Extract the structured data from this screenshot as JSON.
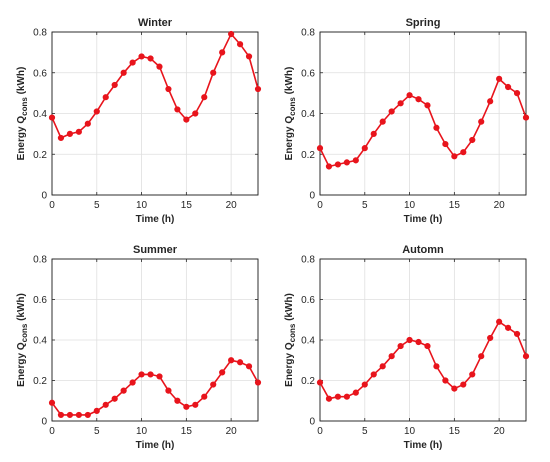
{
  "figure": {
    "series_color": "#e8141c",
    "x_ticks": [
      0,
      5,
      10,
      15,
      20
    ],
    "y_ticks": [
      0,
      0.2,
      0.4,
      0.6,
      0.8
    ]
  },
  "chart_data": [
    {
      "type": "line",
      "title": "Winter",
      "xlabel": "Time (h)",
      "ylabel_main": "Energy  Q",
      "ylabel_sub": "cons",
      "ylabel_unit": "(kWh)",
      "xlim": [
        0,
        23
      ],
      "ylim": [
        0,
        0.8
      ],
      "grid": true,
      "x": [
        0,
        1,
        2,
        3,
        4,
        5,
        6,
        7,
        8,
        9,
        10,
        11,
        12,
        13,
        14,
        15,
        16,
        17,
        18,
        19,
        20,
        21,
        22,
        23
      ],
      "values": [
        0.38,
        0.28,
        0.3,
        0.31,
        0.35,
        0.41,
        0.48,
        0.54,
        0.6,
        0.65,
        0.68,
        0.67,
        0.63,
        0.52,
        0.42,
        0.37,
        0.4,
        0.48,
        0.6,
        0.7,
        0.79,
        0.74,
        0.68,
        0.52
      ]
    },
    {
      "type": "line",
      "title": "Spring",
      "xlabel": "Time (h)",
      "ylabel_main": "Energy  Q",
      "ylabel_sub": "cons",
      "ylabel_unit": "(kWh)",
      "xlim": [
        0,
        23
      ],
      "ylim": [
        0,
        0.8
      ],
      "grid": true,
      "x": [
        0,
        1,
        2,
        3,
        4,
        5,
        6,
        7,
        8,
        9,
        10,
        11,
        12,
        13,
        14,
        15,
        16,
        17,
        18,
        19,
        20,
        21,
        22,
        23
      ],
      "values": [
        0.23,
        0.14,
        0.15,
        0.16,
        0.17,
        0.23,
        0.3,
        0.36,
        0.41,
        0.45,
        0.49,
        0.47,
        0.44,
        0.33,
        0.25,
        0.19,
        0.21,
        0.27,
        0.36,
        0.46,
        0.57,
        0.53,
        0.5,
        0.38
      ]
    },
    {
      "type": "line",
      "title": "Summer",
      "xlabel": "Time (h)",
      "ylabel_main": "Energy  Q",
      "ylabel_sub": "cons",
      "ylabel_unit": "(kWh)",
      "xlim": [
        0,
        23
      ],
      "ylim": [
        0,
        0.8
      ],
      "grid": true,
      "x": [
        0,
        1,
        2,
        3,
        4,
        5,
        6,
        7,
        8,
        9,
        10,
        11,
        12,
        13,
        14,
        15,
        16,
        17,
        18,
        19,
        20,
        21,
        22,
        23
      ],
      "values": [
        0.09,
        0.03,
        0.03,
        0.03,
        0.03,
        0.05,
        0.08,
        0.11,
        0.15,
        0.19,
        0.23,
        0.23,
        0.22,
        0.15,
        0.1,
        0.07,
        0.08,
        0.12,
        0.18,
        0.24,
        0.3,
        0.29,
        0.27,
        0.19
      ]
    },
    {
      "type": "line",
      "title": "Automn",
      "xlabel": "Time (h)",
      "ylabel_main": "Energy  Q",
      "ylabel_sub": "cons",
      "ylabel_unit": "(kWh)",
      "xlim": [
        0,
        23
      ],
      "ylim": [
        0,
        0.8
      ],
      "grid": true,
      "x": [
        0,
        1,
        2,
        3,
        4,
        5,
        6,
        7,
        8,
        9,
        10,
        11,
        12,
        13,
        14,
        15,
        16,
        17,
        18,
        19,
        20,
        21,
        22,
        23
      ],
      "values": [
        0.19,
        0.11,
        0.12,
        0.12,
        0.14,
        0.18,
        0.23,
        0.27,
        0.32,
        0.37,
        0.4,
        0.39,
        0.37,
        0.27,
        0.2,
        0.16,
        0.18,
        0.23,
        0.32,
        0.41,
        0.49,
        0.46,
        0.43,
        0.32
      ]
    }
  ]
}
